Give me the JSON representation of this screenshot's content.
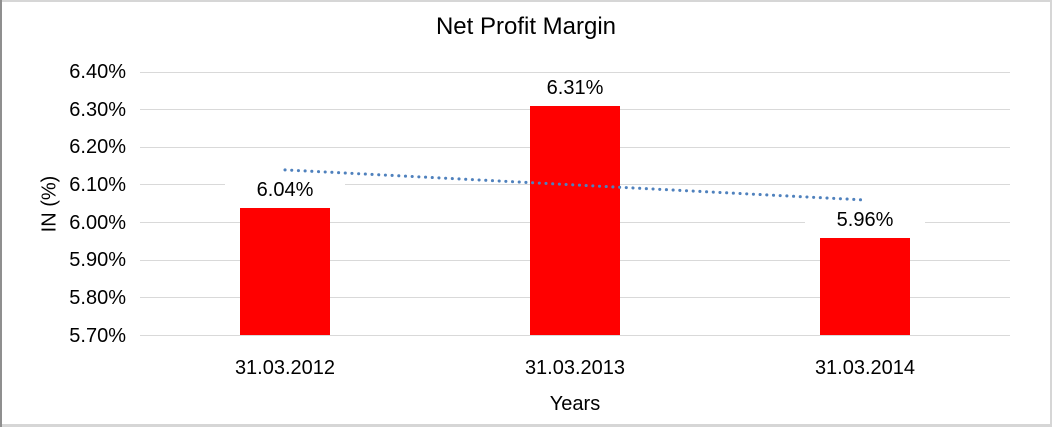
{
  "chart_data": {
    "type": "bar",
    "title": "Net Profit Margin",
    "xlabel": "Years",
    "ylabel": "IN (%)",
    "categories": [
      "31.03.2012",
      "31.03.2013",
      "31.03.2014"
    ],
    "values": [
      6.04,
      6.31,
      5.96
    ],
    "value_labels": [
      "6.04%",
      "6.31%",
      "5.96%"
    ],
    "y_ticks": [
      "6.40%",
      "6.30%",
      "6.20%",
      "6.10%",
      "6.00%",
      "5.90%",
      "5.80%",
      "5.70%"
    ],
    "ylim": [
      5.7,
      6.4
    ],
    "grid": true,
    "legend": "none",
    "bar_color": "#FF0000",
    "gridline_color": "#D9D9D9",
    "text_color": "#000000",
    "trendline": {
      "type": "linear",
      "style": "dotted",
      "color": "#4F81BD",
      "start_value": 6.14,
      "end_value": 6.06
    }
  }
}
